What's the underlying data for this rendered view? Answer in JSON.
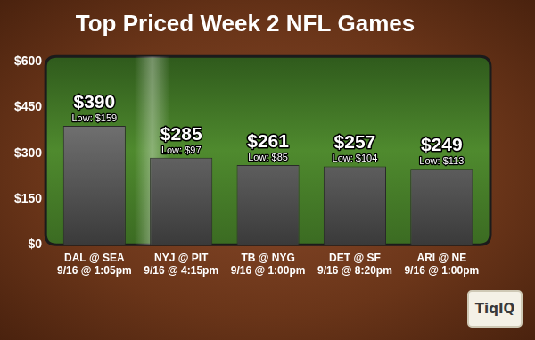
{
  "chart_data": {
    "type": "bar",
    "title": "Top Priced Week 2 NFL Games",
    "categories": [
      [
        "DAL @ SEA",
        "9/16 @ 1:05pm"
      ],
      [
        "NYJ @ PIT",
        "9/16 @ 4:15pm"
      ],
      [
        "TB @ NYG",
        "9/16 @ 1:00pm"
      ],
      [
        "DET @ SF",
        "9/16 @ 8:20pm"
      ],
      [
        "ARI @ NE",
        "9/16 @ 1:00pm"
      ]
    ],
    "values": [
      390,
      285,
      261,
      257,
      249
    ],
    "value_labels": [
      "$390",
      "$285",
      "$261",
      "$257",
      "$249"
    ],
    "lows": [
      159,
      97,
      85,
      104,
      113
    ],
    "low_labels": [
      "Low: $159",
      "Low: $97",
      "Low: $85",
      "Low: $104",
      "Low: $113"
    ],
    "color": "#8c8c8c",
    "ylim": [
      0,
      600
    ],
    "yticks": [
      {
        "value": 0,
        "label": "$0"
      },
      {
        "value": 150,
        "label": "$150"
      },
      {
        "value": 300,
        "label": "$300"
      },
      {
        "value": 450,
        "label": "$450"
      },
      {
        "value": 600,
        "label": "$600"
      }
    ],
    "grid": false,
    "data_labels": true,
    "logo": "TiqIQ"
  }
}
